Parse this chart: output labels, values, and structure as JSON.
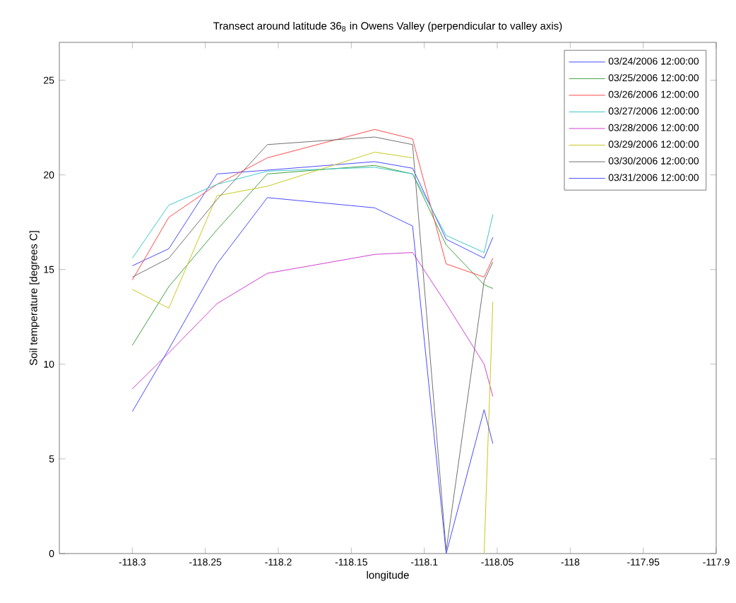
{
  "chart_data": {
    "type": "line",
    "title": "Transect around latitude 36$_{8}$ in Owens Valley (perpendicular to valley axis)",
    "xlabel": "longitude",
    "ylabel": "Soil temperature [degrees C]",
    "x": [
      -118.3,
      -118.275,
      -118.242,
      -118.2075,
      -118.134,
      -118.108,
      -118.085,
      -118.059,
      -118.053
    ],
    "series": [
      {
        "name": "03/24/2006 12:00:00",
        "color": "#4a4aff",
        "values": [
          15.2,
          16.1,
          20.05,
          20.25,
          20.7,
          20.35,
          16.6,
          15.6,
          16.7
        ]
      },
      {
        "name": "03/25/2006 12:00:00",
        "color": "#40a040",
        "values": [
          11.0,
          14.1,
          17.1,
          20.05,
          20.5,
          20.05,
          16.3,
          14.2,
          14.0
        ]
      },
      {
        "name": "03/26/2006 12:00:00",
        "color": "#ff4a4a",
        "values": [
          14.45,
          17.76,
          19.5,
          20.9,
          22.4,
          21.9,
          15.3,
          14.6,
          15.6
        ]
      },
      {
        "name": "03/27/2006 12:00:00",
        "color": "#40c8c8",
        "values": [
          15.6,
          18.4,
          19.5,
          20.2,
          20.4,
          20.05,
          16.8,
          15.9,
          17.9
        ]
      },
      {
        "name": "03/28/2006 12:00:00",
        "color": "#d040d0",
        "values": [
          8.7,
          10.6,
          13.2,
          14.8,
          15.8,
          15.9,
          13.2,
          10.0,
          8.3
        ]
      },
      {
        "name": "03/29/2006 12:00:00",
        "color": "#c8c820",
        "values": [
          13.95,
          12.96,
          18.9,
          19.4,
          21.2,
          20.9,
          null,
          0,
          13.3
        ]
      },
      {
        "name": "03/30/2006 12:00:00",
        "color": "#707070",
        "values": [
          14.6,
          15.6,
          18.7,
          21.6,
          22.0,
          21.6,
          0.15,
          14.4,
          15.4
        ]
      },
      {
        "name": "03/31/2006 12:00:00",
        "color": "#4a4aff",
        "values": [
          7.5,
          10.8,
          15.3,
          18.8,
          18.26,
          17.3,
          0,
          7.6,
          5.8
        ]
      }
    ],
    "xlim": [
      -118.35,
      -117.9
    ],
    "ylim": [
      0,
      27
    ],
    "xticks": [
      -118.3,
      -118.25,
      -118.2,
      -118.15,
      -118.1,
      -118.05,
      -118,
      -117.95,
      -117.9
    ],
    "yticks": [
      0,
      5,
      10,
      15,
      20,
      25
    ],
    "grid": false,
    "legend": "top right",
    "marker": "none",
    "line_style": "solid"
  }
}
